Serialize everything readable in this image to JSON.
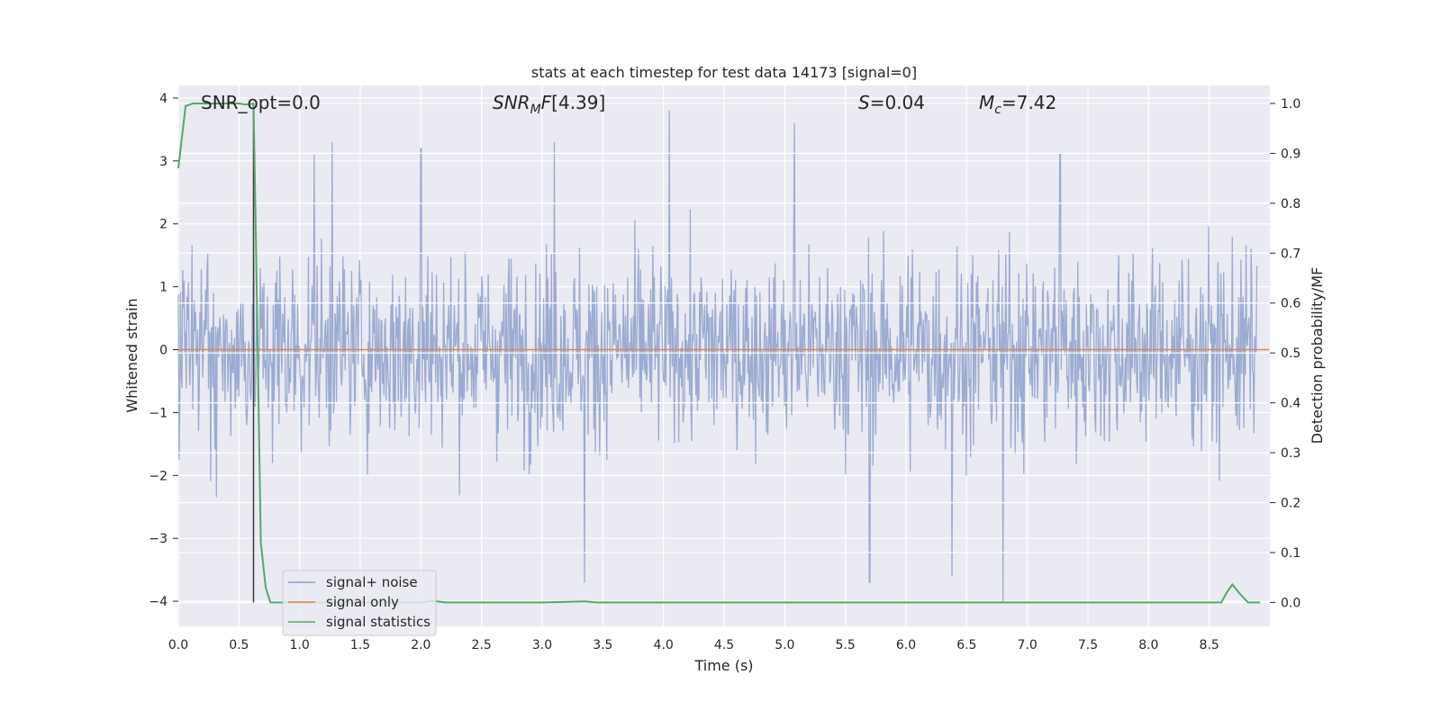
{
  "chart_data": {
    "type": "line",
    "title": "stats at each timestep for test data 14173 [signal=0]",
    "xlabel": "Time (s)",
    "ylabel_left": "Whitened strain",
    "ylabel_right": "Detection probability/MF",
    "xlim": [
      0.0,
      9.0
    ],
    "ylim_left": [
      -4.4,
      4.2
    ],
    "ylim_right": [
      -0.048,
      1.036
    ],
    "x_ticks": [
      "0.0",
      "0.5",
      "1.0",
      "1.5",
      "2.0",
      "2.5",
      "3.0",
      "3.5",
      "4.0",
      "4.5",
      "5.0",
      "5.5",
      "6.0",
      "6.5",
      "7.0",
      "7.5",
      "8.0",
      "8.5"
    ],
    "y_left_ticks": [
      "4",
      "3",
      "2",
      "1",
      "0",
      "−1",
      "−2",
      "−3",
      "−4"
    ],
    "y_right_ticks": [
      "1.0",
      "0.9",
      "0.8",
      "0.7",
      "0.6",
      "0.5",
      "0.4",
      "0.3",
      "0.2",
      "0.1",
      "0.0"
    ],
    "grid": true,
    "legend_position": "lower-left",
    "annotations": {
      "snr_opt": "SNR_opt=0.0",
      "snr_mf": "[4.39]",
      "s_value": "=0.04",
      "mc_value": "=7.42"
    },
    "vertical_marker_x": 0.62,
    "series": [
      {
        "name": "signal+ noise",
        "color": "#8da0cb",
        "description_values": "dense whitened noise, approx within [-3.7, 3.8], envelope ~±1.5 to ±2.5",
        "notable_peaks": [
          {
            "x": 1.12,
            "y": 3.1
          },
          {
            "x": 1.27,
            "y": 3.3
          },
          {
            "x": 2.0,
            "y": 3.2
          },
          {
            "x": 3.1,
            "y": 3.3
          },
          {
            "x": 4.05,
            "y": 3.8
          },
          {
            "x": 5.08,
            "y": 3.6
          },
          {
            "x": 7.27,
            "y": 3.1
          },
          {
            "x": 3.35,
            "y": -3.7
          },
          {
            "x": 5.7,
            "y": -3.7
          },
          {
            "x": 6.38,
            "y": -3.6
          },
          {
            "x": 6.8,
            "y": -4.0
          }
        ]
      },
      {
        "name": "signal only",
        "color": "#dd8452",
        "x": [
          0.0,
          9.0
        ],
        "y": [
          0.0,
          0.0
        ]
      },
      {
        "name": "signal statistics",
        "color": "#55a868",
        "axis": "right",
        "x": [
          0.0,
          0.06,
          0.12,
          0.2,
          0.3,
          0.5,
          0.55,
          0.6,
          0.62,
          0.64,
          0.68,
          0.72,
          0.76,
          0.85,
          1.0,
          2.0,
          2.1,
          2.2,
          3.0,
          3.35,
          3.45,
          4.0,
          5.0,
          6.0,
          7.0,
          8.0,
          8.6,
          8.64,
          8.69,
          8.75,
          8.82,
          8.92
        ],
        "y": [
          0.87,
          0.995,
          1.0,
          1.0,
          1.0,
          1.0,
          0.998,
          0.999,
          1.0,
          0.72,
          0.12,
          0.03,
          0.0,
          0.0,
          0.0,
          0.0,
          0.003,
          0.0,
          0.0,
          0.002,
          0.0,
          0.0,
          0.0,
          0.0,
          0.0,
          0.0,
          0.0,
          0.018,
          0.036,
          0.018,
          0.0,
          0.0
        ]
      }
    ]
  }
}
